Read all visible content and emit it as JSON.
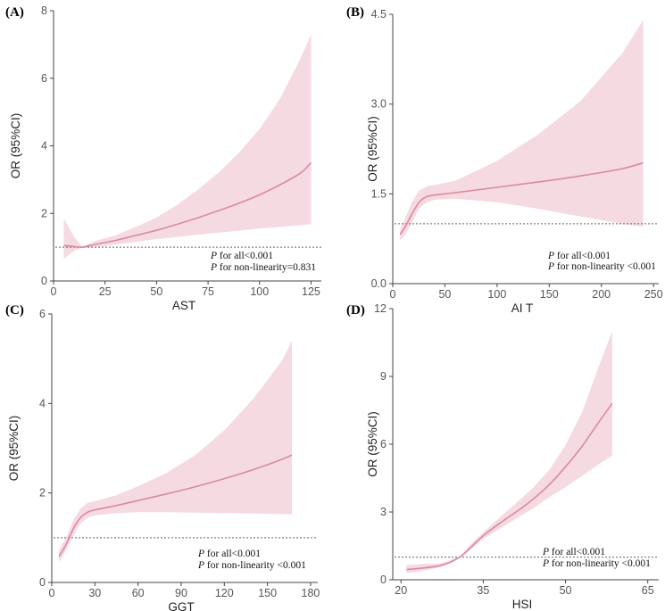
{
  "figure": {
    "panel_ids": [
      "A",
      "B",
      "C",
      "D"
    ],
    "colors": {
      "band": "#f5d3dc",
      "line": "#d98aa0",
      "reference": "#666666",
      "axis": "#444444"
    }
  },
  "chart_data": [
    {
      "id": "A",
      "panel_label": "(A)",
      "type": "line",
      "xlabel": "AST",
      "ylabel": "OR (95%CI)",
      "xlim": [
        0,
        130
      ],
      "ylim": [
        0,
        8
      ],
      "xticks": [
        0,
        25,
        50,
        75,
        100,
        125
      ],
      "xtick_labels": [
        "0",
        "25",
        "50",
        "75",
        "100",
        "125"
      ],
      "yticks": [
        0,
        2,
        4,
        6,
        8
      ],
      "ytick_labels": [
        "0",
        "2",
        "4",
        "6",
        "8"
      ],
      "reference_y": 1,
      "x": [
        5,
        10,
        14,
        20,
        30,
        40,
        50,
        60,
        70,
        80,
        90,
        100,
        110,
        120,
        125
      ],
      "or": [
        1.05,
        1.02,
        1.0,
        1.08,
        1.2,
        1.35,
        1.5,
        1.68,
        1.87,
        2.08,
        2.3,
        2.55,
        2.85,
        3.2,
        3.5
      ],
      "lower": [
        0.65,
        0.9,
        0.98,
        1.0,
        1.08,
        1.16,
        1.24,
        1.3,
        1.37,
        1.43,
        1.49,
        1.55,
        1.6,
        1.65,
        1.68
      ],
      "upper": [
        1.85,
        1.3,
        1.02,
        1.18,
        1.35,
        1.6,
        1.88,
        2.25,
        2.7,
        3.2,
        3.8,
        4.5,
        5.4,
        6.6,
        7.3
      ],
      "annotations": [
        "P for all<0.001",
        "P for non-linearity=0.831"
      ]
    },
    {
      "id": "B",
      "panel_label": "(B)",
      "type": "line",
      "xlabel": "AI T",
      "ylabel": "OR (95%CI)",
      "xlim": [
        0,
        255
      ],
      "ylim": [
        0,
        4.5
      ],
      "xticks": [
        0,
        50,
        100,
        150,
        200,
        250
      ],
      "xtick_labels": [
        "0",
        "50",
        "100",
        "150",
        "200",
        "250"
      ],
      "yticks": [
        0,
        1.5,
        3,
        4.5
      ],
      "ytick_labels": [
        "0.0",
        "1.5",
        "3.0",
        "4.5"
      ],
      "reference_y": 1,
      "x": [
        7,
        12,
        18,
        25,
        32,
        40,
        60,
        100,
        140,
        180,
        220,
        240
      ],
      "or": [
        0.82,
        0.95,
        1.15,
        1.35,
        1.45,
        1.48,
        1.52,
        1.61,
        1.7,
        1.8,
        1.92,
        2.02
      ],
      "lower": [
        0.72,
        0.82,
        1.0,
        1.25,
        1.35,
        1.4,
        1.42,
        1.36,
        1.25,
        1.12,
        1.0,
        0.95
      ],
      "upper": [
        0.9,
        1.1,
        1.35,
        1.55,
        1.62,
        1.65,
        1.72,
        2.05,
        2.5,
        3.05,
        3.85,
        4.4
      ],
      "annotations": [
        "P for all<0.001",
        "P for non-linearity <0.001"
      ]
    },
    {
      "id": "C",
      "panel_label": "(C)",
      "type": "line",
      "xlabel": "GGT",
      "ylabel": "OR (95%CI)",
      "xlim": [
        0,
        185
      ],
      "ylim": [
        0,
        6
      ],
      "xticks": [
        0,
        30,
        60,
        90,
        120,
        150,
        180
      ],
      "xtick_labels": [
        "0",
        "30",
        "60",
        "90",
        "120",
        "150",
        "180"
      ],
      "yticks": [
        0,
        2,
        4,
        6
      ],
      "ytick_labels": [
        "0",
        "2",
        "4",
        "6"
      ],
      "reference_y": 1,
      "x": [
        5,
        10,
        15,
        20,
        25,
        30,
        45,
        60,
        80,
        100,
        120,
        140,
        160,
        167
      ],
      "or": [
        0.58,
        0.85,
        1.2,
        1.45,
        1.57,
        1.62,
        1.72,
        1.83,
        1.98,
        2.14,
        2.32,
        2.52,
        2.75,
        2.85
      ],
      "lower": [
        0.45,
        0.72,
        1.05,
        1.32,
        1.45,
        1.5,
        1.55,
        1.57,
        1.57,
        1.56,
        1.55,
        1.54,
        1.53,
        1.52
      ],
      "upper": [
        0.72,
        1.0,
        1.4,
        1.65,
        1.78,
        1.82,
        1.95,
        2.15,
        2.45,
        2.85,
        3.4,
        4.1,
        4.95,
        5.4
      ],
      "annotations": [
        "P for all<0.001",
        "P for non-linearity <0.001"
      ]
    },
    {
      "id": "D",
      "panel_label": "(D)",
      "type": "line",
      "xlabel": "HSI",
      "ylabel": "OR (95%CI)",
      "xlim": [
        18.5,
        67
      ],
      "ylim": [
        0,
        12
      ],
      "xticks": [
        20,
        35,
        50,
        65
      ],
      "xtick_labels": [
        "20",
        "35",
        "50",
        "65"
      ],
      "yticks": [
        0,
        3,
        6,
        9,
        12
      ],
      "ytick_labels": [
        "0",
        "3",
        "6",
        "9",
        "12"
      ],
      "reference_y": 1,
      "x": [
        21,
        24,
        27,
        29,
        31,
        33,
        35,
        38,
        41,
        44,
        47,
        50,
        53,
        56,
        58.5
      ],
      "or": [
        0.45,
        0.52,
        0.62,
        0.78,
        1.05,
        1.5,
        1.95,
        2.5,
        3.0,
        3.55,
        4.2,
        5.0,
        5.9,
        6.95,
        7.8
      ],
      "lower": [
        0.3,
        0.4,
        0.55,
        0.72,
        1.0,
        1.4,
        1.8,
        2.25,
        2.7,
        3.15,
        3.65,
        4.1,
        4.6,
        5.1,
        5.5
      ],
      "upper": [
        0.65,
        0.7,
        0.72,
        0.85,
        1.1,
        1.65,
        2.1,
        2.75,
        3.4,
        4.05,
        4.85,
        5.95,
        7.4,
        9.4,
        11.0
      ],
      "annotations": [
        "P for all<0.001",
        "P for non-linearity <0.001"
      ]
    }
  ]
}
